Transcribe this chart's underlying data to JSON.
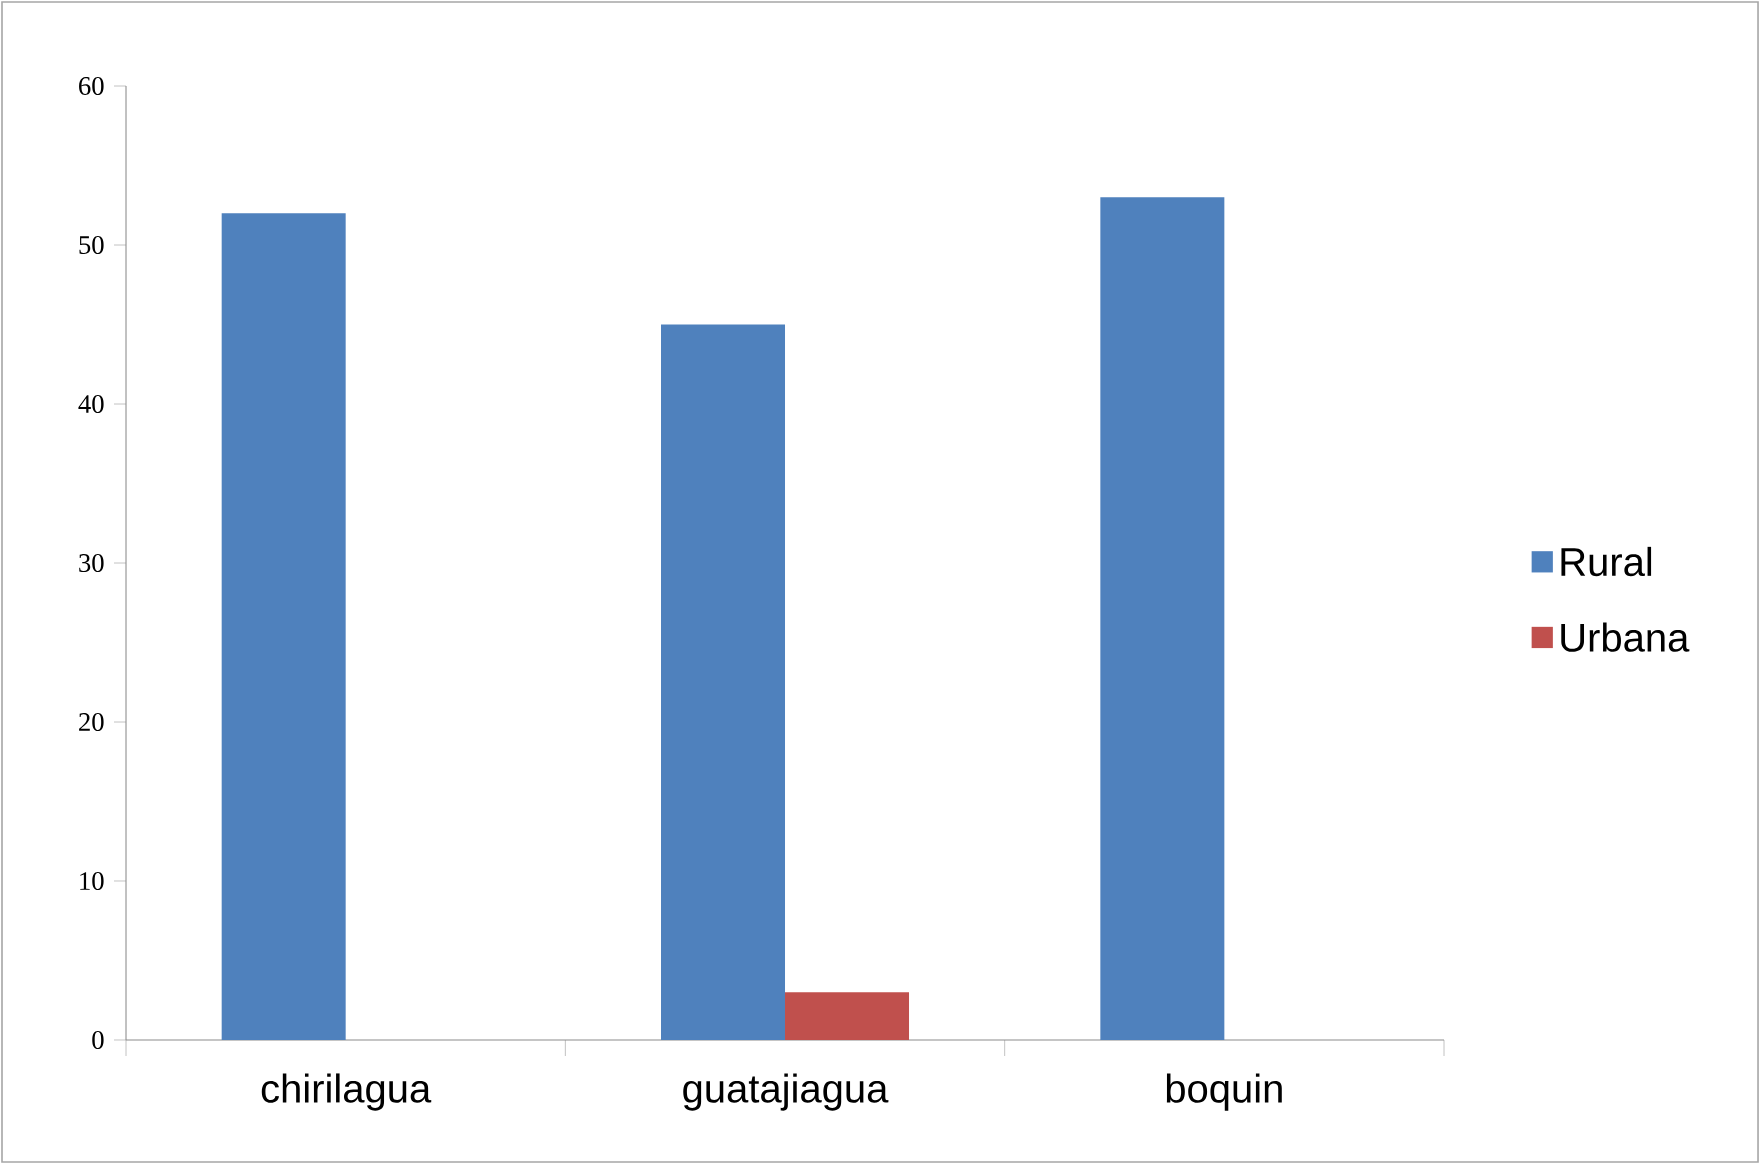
{
  "chart_data": {
    "type": "bar",
    "categories": [
      "chirilagua",
      "guatajiagua",
      "boquin"
    ],
    "series": [
      {
        "name": "Rural",
        "color": "#4f81bd",
        "values": [
          52,
          45,
          53
        ]
      },
      {
        "name": "Urbana",
        "color": "#c0504d",
        "values": [
          0,
          3,
          0
        ]
      }
    ],
    "ylim": [
      0,
      60
    ],
    "yticks": [
      0,
      10,
      20,
      30,
      40,
      50,
      60
    ],
    "grid": false,
    "legend": "right"
  }
}
